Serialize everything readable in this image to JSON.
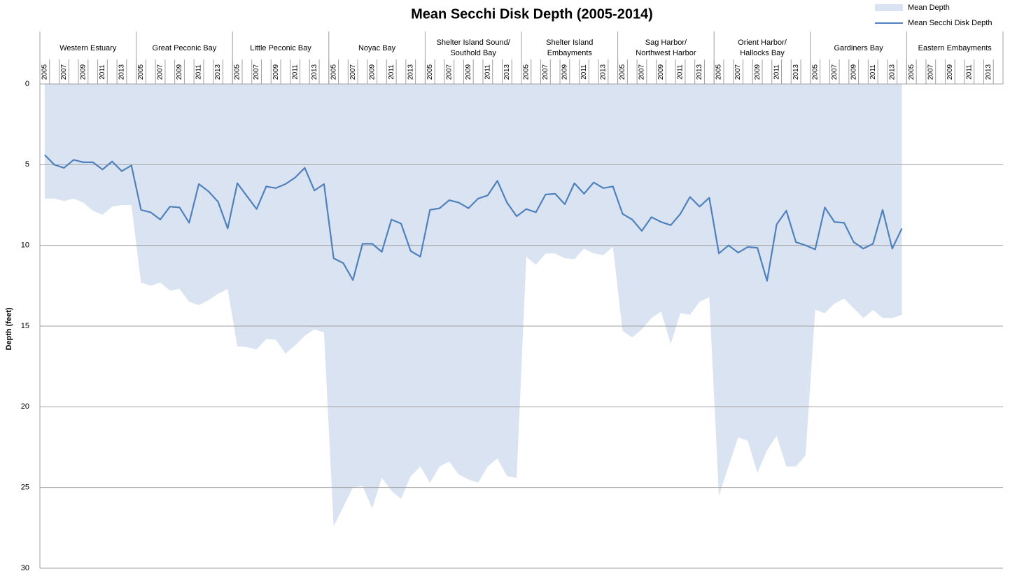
{
  "chart_data": {
    "type": "area-line",
    "title": "Mean Secchi Disk Depth (2005-2014)",
    "y_label": "Depth (feet)",
    "ylim": [
      0,
      30
    ],
    "yticks": [
      0,
      5,
      10,
      15,
      20,
      25,
      30
    ],
    "y_inverted": true,
    "grid": true,
    "legend": "top-right",
    "groups": [
      [
        "Western Estuary"
      ],
      [
        "Great Peconic Bay"
      ],
      [
        "Little Peconic Bay"
      ],
      [
        "Noyac Bay"
      ],
      [
        "Shelter Island Sound/",
        "Southold Bay"
      ],
      [
        "Shelter Island",
        "Embayments"
      ],
      [
        "Sag Harbor/",
        "Northwest Harbor"
      ],
      [
        "Orient Harbor/",
        "Hallocks Bay"
      ],
      [
        "Gardiners Bay"
      ],
      [
        "Eastern Embayments"
      ]
    ],
    "categories": [
      "2005",
      null,
      "2007",
      null,
      "2009",
      null,
      "2011",
      null,
      "2013",
      null,
      "2005",
      null,
      "2007",
      null,
      "2009",
      null,
      "2011",
      null,
      "2013",
      null,
      "2005",
      null,
      "2007",
      null,
      "2009",
      null,
      "2011",
      null,
      "2013",
      null,
      "2005",
      null,
      "2007",
      null,
      "2009",
      null,
      "2011",
      null,
      "2013",
      null,
      "2005",
      null,
      "2007",
      null,
      "2009",
      null,
      "2011",
      null,
      "2013",
      null,
      "2005",
      null,
      "2007",
      null,
      "2009",
      null,
      "2011",
      null,
      "2013",
      null,
      "2005",
      null,
      "2007",
      null,
      "2009",
      null,
      "2011",
      null,
      "2013",
      null,
      "2005",
      null,
      "2007",
      null,
      "2009",
      null,
      "2011",
      null,
      "2013",
      null,
      "2005",
      null,
      "2007",
      null,
      "2009",
      null,
      "2011",
      null,
      "2013",
      null,
      "2005",
      null,
      "2007",
      null,
      "2009",
      null,
      "2011",
      null,
      "2013",
      null
    ],
    "series": [
      {
        "name": "Mean Depth",
        "kind": "area",
        "color": "#dae3f1",
        "values": [
          7.1,
          7.1,
          7.25,
          7.1,
          7.35,
          7.85,
          8.1,
          7.6,
          7.5,
          7.5,
          12.3,
          12.5,
          12.3,
          12.8,
          12.7,
          13.5,
          13.7,
          13.4,
          13.0,
          12.7,
          16.25,
          16.3,
          16.45,
          15.8,
          15.85,
          16.7,
          16.2,
          15.6,
          15.2,
          15.4,
          27.4,
          26.2,
          25.0,
          24.9,
          26.3,
          24.4,
          25.2,
          25.7,
          24.3,
          23.7,
          24.7,
          23.7,
          23.4,
          24.2,
          24.5,
          24.7,
          23.7,
          23.2,
          24.3,
          24.4,
          10.7,
          11.2,
          10.5,
          10.5,
          10.8,
          10.85,
          10.2,
          10.5,
          10.6,
          10.1,
          15.3,
          15.7,
          15.2,
          14.5,
          14.1,
          16.1,
          14.2,
          14.3,
          13.5,
          13.2,
          25.5,
          23.7,
          21.9,
          22.1,
          24.1,
          22.7,
          21.8,
          23.7,
          23.7,
          23.0,
          14.0,
          14.2,
          13.6,
          13.3,
          13.9,
          14.5,
          14.0,
          14.5,
          14.5,
          14.3,
          null,
          null,
          null,
          null,
          null,
          null,
          null,
          null,
          null,
          null
        ]
      },
      {
        "name": "Mean Secchi Disk Depth",
        "kind": "line",
        "color": "#4f81bd",
        "values": [
          4.4,
          5.0,
          5.2,
          4.7,
          4.85,
          4.85,
          5.3,
          4.8,
          5.4,
          5.05,
          7.8,
          7.95,
          8.4,
          7.6,
          7.65,
          8.6,
          6.2,
          6.65,
          7.3,
          8.95,
          6.15,
          6.95,
          7.75,
          6.35,
          6.45,
          6.2,
          5.8,
          5.2,
          6.6,
          6.2,
          10.8,
          11.1,
          12.15,
          9.9,
          9.9,
          10.4,
          8.4,
          8.65,
          10.35,
          10.7,
          7.8,
          7.7,
          7.2,
          7.35,
          7.7,
          7.1,
          6.9,
          6.0,
          7.35,
          8.2,
          7.75,
          7.95,
          6.85,
          6.8,
          7.45,
          6.15,
          6.8,
          6.1,
          6.45,
          6.35,
          8.05,
          8.4,
          9.1,
          8.25,
          8.55,
          8.75,
          8.05,
          7.0,
          7.6,
          7.05,
          10.5,
          10.0,
          10.45,
          10.1,
          10.15,
          12.2,
          8.7,
          7.85,
          9.8,
          10.0,
          10.25,
          7.65,
          8.55,
          8.6,
          9.8,
          10.2,
          9.9,
          7.8,
          10.2,
          8.95,
          null,
          null,
          null,
          null,
          null,
          null,
          null,
          null,
          null,
          null
        ]
      }
    ]
  }
}
